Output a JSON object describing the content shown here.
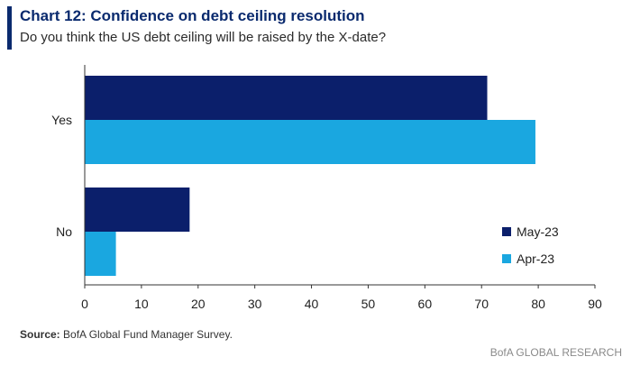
{
  "header": {
    "title": "Chart 12: Confidence on debt ceiling resolution",
    "subtitle": "Do you think the US debt ceiling will be raised by the X-date?"
  },
  "footer": {
    "source_label": "Source:",
    "source_text": " BofA Global Fund Manager Survey.",
    "brand": "BofA GLOBAL RESEARCH"
  },
  "colors": {
    "may_23": "#0b1f6b",
    "apr_23": "#1aa7e0",
    "axis": "#333333",
    "title": "#0a2a6e"
  },
  "chart_data": {
    "type": "bar",
    "orientation": "horizontal",
    "categories": [
      "Yes",
      "No"
    ],
    "series": [
      {
        "name": "May-23",
        "values": [
          71,
          18.5
        ]
      },
      {
        "name": "Apr-23",
        "values": [
          79.5,
          5.5
        ]
      }
    ],
    "xlim": [
      0,
      90
    ],
    "xticks": [
      0,
      10,
      20,
      30,
      40,
      50,
      60,
      70,
      80,
      90
    ],
    "legend_position": "bottom-right",
    "grid": false
  }
}
